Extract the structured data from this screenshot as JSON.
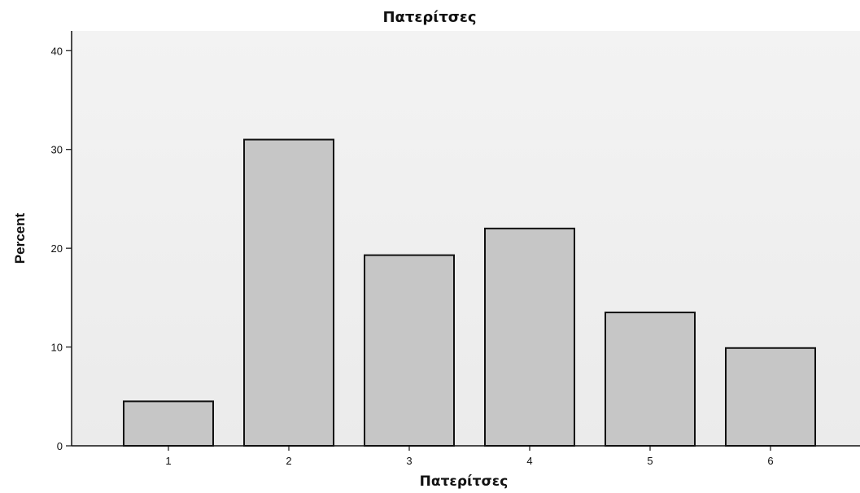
{
  "chart_data": {
    "type": "bar",
    "title": "Πατερίτσες",
    "xlabel": "Πατερίτσες",
    "ylabel": "Percent",
    "categories": [
      "1",
      "2",
      "3",
      "4",
      "5",
      "6"
    ],
    "values": [
      4.5,
      31.0,
      19.3,
      22.0,
      13.5,
      9.9
    ],
    "ylim": [
      0,
      42
    ],
    "yticks": [
      "0",
      "10",
      "20",
      "30",
      "40"
    ],
    "ytick_values": [
      0,
      10,
      20,
      30,
      40
    ],
    "grid": false,
    "legend": "none",
    "colors": {
      "bar_fill": "#c6c6c6",
      "bar_stroke": "#111111",
      "plot_background": "#f0f0f0",
      "axis": "#111111"
    }
  }
}
